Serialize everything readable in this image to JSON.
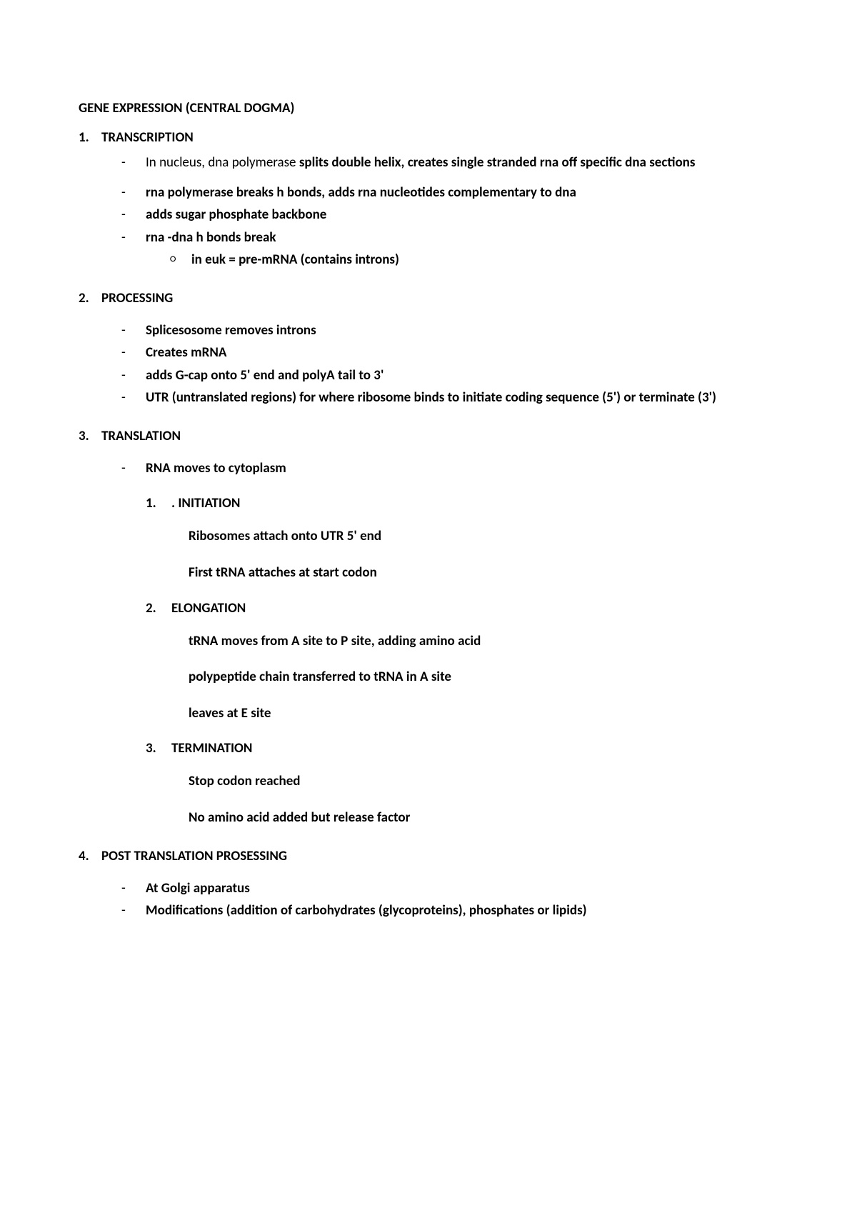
{
  "title": "GENE EXPRESSION (CENTRAL DOGMA)",
  "colors": {
    "text": "#000000",
    "background": "#ffffff"
  },
  "typography": {
    "base_fontsize_pt": 14,
    "heading_weight": 700,
    "body_weight": 700,
    "font_family": "Segoe UI / Calibri"
  },
  "sections": [
    {
      "num": "1.",
      "heading": "TRANSCRIPTION",
      "items": [
        {
          "prefix_light": "In nucleus, dna polymerase ",
          "text": "splits double helix, creates single stranded rna off specific dna sections"
        },
        {
          "text": "rna polymerase breaks h bonds, adds rna nucleotides complementary to dna"
        },
        {
          "text": "adds sugar phosphate backbone"
        },
        {
          "text": "rna -dna h bonds break",
          "sub": [
            {
              "text": "in euk = pre-mRNA (contains introns)"
            }
          ]
        }
      ]
    },
    {
      "num": "2.",
      "heading": "PROCESSING",
      "items": [
        {
          "text": "Splicesosome removes introns"
        },
        {
          "text": "Creates mRNA"
        },
        {
          "text": "adds G-cap onto 5' end and polyA tail to 3'"
        },
        {
          "text": "UTR (untranslated regions) for where ribosome binds to initiate coding sequence (5') or terminate (3')"
        }
      ]
    },
    {
      "num": "3.",
      "heading": "TRANSLATION",
      "pre_items": [
        {
          "text": "RNA moves to cytoplasm"
        }
      ],
      "inner_numbered": [
        {
          "num": "1.",
          "label": ". INITIATION",
          "lines": [
            "Ribosomes attach onto UTR 5' end",
            "First tRNA attaches at start codon"
          ]
        },
        {
          "num": "2.",
          "label": "ELONGATION",
          "lines": [
            "tRNA moves from A site to P site, adding amino acid",
            "polypeptide chain transferred to tRNA in A site",
            "leaves at E site"
          ]
        },
        {
          "num": "3.",
          "label": "TERMINATION",
          "lines": [
            "Stop codon reached",
            "No amino acid added but release factor"
          ]
        }
      ]
    },
    {
      "num": "4.",
      "heading": "POST TRANSLATION PROSESSING",
      "items": [
        {
          "text": "At Golgi apparatus"
        },
        {
          "text": "Modifications (addition of carbohydrates (glycoproteins), phosphates or lipids)"
        }
      ]
    }
  ]
}
